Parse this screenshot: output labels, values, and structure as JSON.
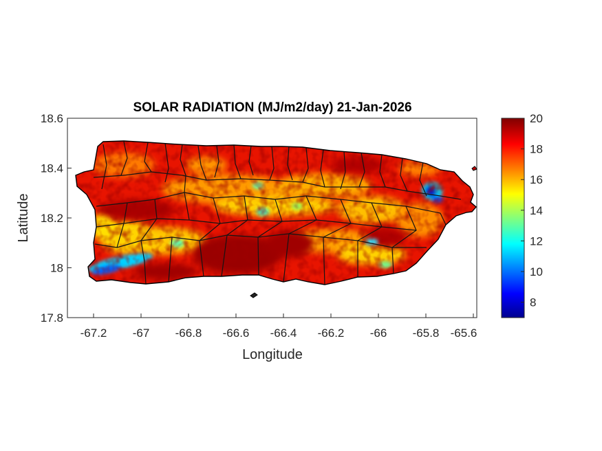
{
  "figure": {
    "title": "SOLAR RADIATION (MJ/m2/day) 21-Jan-2026",
    "xlabel": "Longitude",
    "ylabel": "Latitude"
  },
  "axes": {
    "x_ticks": [
      "-67.2",
      "-67",
      "-66.8",
      "-66.6",
      "-66.4",
      "-66.2",
      "-66",
      "-65.8",
      "-65.6"
    ],
    "y_ticks": [
      "18.6",
      "18.4",
      "18.2",
      "18",
      "17.8"
    ]
  },
  "colorbar": {
    "ticks": [
      "20",
      "18",
      "16",
      "14",
      "12",
      "10",
      "8"
    ],
    "colormap": "jet"
  },
  "map": {
    "region": "Puerto Rico",
    "variable": "solar radiation",
    "units": "MJ/m2/day",
    "date": "21-Jan-2026",
    "dominant_color": "#d81a00",
    "low_color": "#0000a0",
    "high_color": "#7f0000"
  },
  "chart_data": {
    "type": "heatmap",
    "title": "SOLAR RADIATION (MJ/m2/day) 21-Jan-2026",
    "xlabel": "Longitude",
    "ylabel": "Latitude",
    "xlim": [
      -67.3,
      -65.58
    ],
    "ylim": [
      17.8,
      18.6
    ],
    "x_ticks": [
      -67.2,
      -67,
      -66.8,
      -66.6,
      -66.4,
      -66.2,
      -66,
      -65.8,
      -65.6
    ],
    "y_ticks": [
      18.6,
      18.4,
      18.2,
      18,
      17.8
    ],
    "colorbar_range": [
      7,
      20
    ],
    "colorbar_ticks": [
      8,
      10,
      12,
      14,
      16,
      18,
      20
    ],
    "colormap": "jet",
    "grid": false,
    "features": [
      {
        "name": "low radiation band southwest",
        "lon": -67.12,
        "lat": 18.02,
        "value": 9
      },
      {
        "name": "low radiation spot northeast",
        "lon": -65.79,
        "lat": 18.3,
        "value": 8
      },
      {
        "name": "central cyan spots",
        "lon": -66.48,
        "lat": 18.23,
        "value": 13
      },
      {
        "name": "high radiation south-central",
        "lon": -66.6,
        "lat": 18.06,
        "value": 20
      }
    ]
  }
}
